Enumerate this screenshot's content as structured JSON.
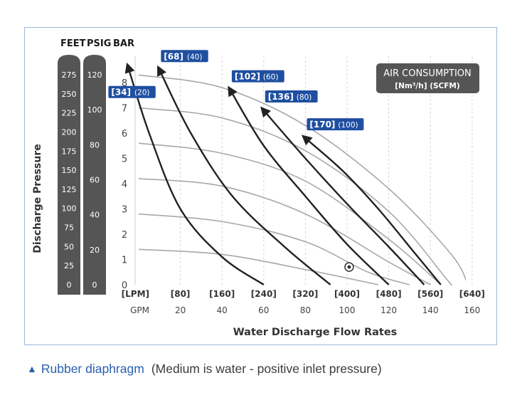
{
  "caption": {
    "marker": "▲",
    "title": "Rubber diaphragm",
    "note": "(Medium is water -  positive inlet pressure)"
  },
  "colors": {
    "brand_blue": "#1f4fa0",
    "column_dark": "#555555",
    "air_curve": "#222222",
    "pump_curve": "#a8a8a8",
    "grid": "#d6d6d6",
    "frame": "#9bb7d8"
  },
  "chart_data": {
    "type": "line",
    "title": "",
    "xlabel": "Water Discharge Flow Rates",
    "ylabel": "Discharge Pressure",
    "unit_headers": [
      "FEET",
      "PSIG",
      "BAR"
    ],
    "x_unit_lpm": "[LPM]",
    "x_unit_gpm": "GPM",
    "x_ticks_lpm": [
      "[80]",
      "[160]",
      "[240]",
      "[320]",
      "[400]",
      "[480]",
      "[560]",
      "[640]"
    ],
    "x_ticks_gpm": [
      "20",
      "40",
      "60",
      "80",
      "100",
      "120",
      "140",
      "160"
    ],
    "xlim_gpm": [
      0,
      160
    ],
    "y_ticks_bar": [
      "0",
      "1",
      "2",
      "3",
      "4",
      "5",
      "6",
      "7",
      "8"
    ],
    "ylim_bar": [
      0,
      8.5
    ],
    "feet_ticks": [
      "275",
      "250",
      "225",
      "200",
      "175",
      "150",
      "125",
      "100",
      "75",
      "50",
      "25",
      "0"
    ],
    "psig_ticks": [
      "120",
      "100",
      "80",
      "60",
      "40",
      "20",
      "0"
    ],
    "grid": true,
    "legend": {
      "title": "AIR CONSUMPTION",
      "subtitle": "[Nm³/h] (SCFM)",
      "placement": "top-right"
    },
    "air_consumption_curves": [
      {
        "label_nm3h": "[34]",
        "label_scfm": "(20)",
        "points": [
          [
            -5,
            8.6
          ],
          [
            5,
            6.0
          ],
          [
            20,
            3.0
          ],
          [
            40,
            1.1
          ],
          [
            60,
            0.0
          ]
        ]
      },
      {
        "label_nm3h": "[68]",
        "label_scfm": "(40)",
        "points": [
          [
            10,
            8.5
          ],
          [
            25,
            6.0
          ],
          [
            45,
            3.5
          ],
          [
            70,
            1.5
          ],
          [
            92,
            0.0
          ]
        ]
      },
      {
        "label_nm3h": "[102]",
        "label_scfm": "(60)",
        "points": [
          [
            44,
            7.7
          ],
          [
            60,
            5.5
          ],
          [
            80,
            3.5
          ],
          [
            100,
            1.6
          ],
          [
            120,
            0.0
          ]
        ]
      },
      {
        "label_nm3h": "[136]",
        "label_scfm": "(80)",
        "points": [
          [
            60,
            6.9
          ],
          [
            80,
            5.0
          ],
          [
            100,
            3.2
          ],
          [
            120,
            1.5
          ],
          [
            137,
            0.0
          ]
        ]
      },
      {
        "label_nm3h": "[170]",
        "label_scfm": "(100)",
        "points": [
          [
            80,
            5.8
          ],
          [
            98,
            4.5
          ],
          [
            115,
            3.0
          ],
          [
            132,
            1.3
          ],
          [
            145,
            0.0
          ]
        ]
      }
    ],
    "pump_curves_start_bar": [
      8.3,
      7.0,
      5.6,
      4.2,
      2.8,
      1.4
    ],
    "pump_curves": [
      {
        "points": [
          [
            0,
            8.3
          ],
          [
            40,
            7.8
          ],
          [
            80,
            6.3
          ],
          [
            120,
            3.8
          ],
          [
            150,
            1.2
          ],
          [
            158,
            0.0
          ]
        ]
      },
      {
        "points": [
          [
            0,
            7.0
          ],
          [
            40,
            6.6
          ],
          [
            80,
            5.3
          ],
          [
            120,
            2.9
          ],
          [
            148,
            0.2
          ],
          [
            150,
            0.0
          ]
        ]
      },
      {
        "points": [
          [
            0,
            5.6
          ],
          [
            40,
            5.2
          ],
          [
            80,
            4.1
          ],
          [
            120,
            1.8
          ],
          [
            145,
            0.0
          ]
        ]
      },
      {
        "points": [
          [
            0,
            4.2
          ],
          [
            40,
            3.9
          ],
          [
            80,
            2.8
          ],
          [
            120,
            0.9
          ],
          [
            140,
            0.0
          ]
        ]
      },
      {
        "points": [
          [
            0,
            2.8
          ],
          [
            40,
            2.5
          ],
          [
            80,
            1.7
          ],
          [
            110,
            0.5
          ],
          [
            130,
            0.0
          ]
        ]
      },
      {
        "points": [
          [
            0,
            1.4
          ],
          [
            40,
            1.2
          ],
          [
            80,
            0.6
          ],
          [
            115,
            0.0
          ]
        ]
      }
    ],
    "operating_point": {
      "gpm": 101,
      "bar": 0.7
    }
  }
}
